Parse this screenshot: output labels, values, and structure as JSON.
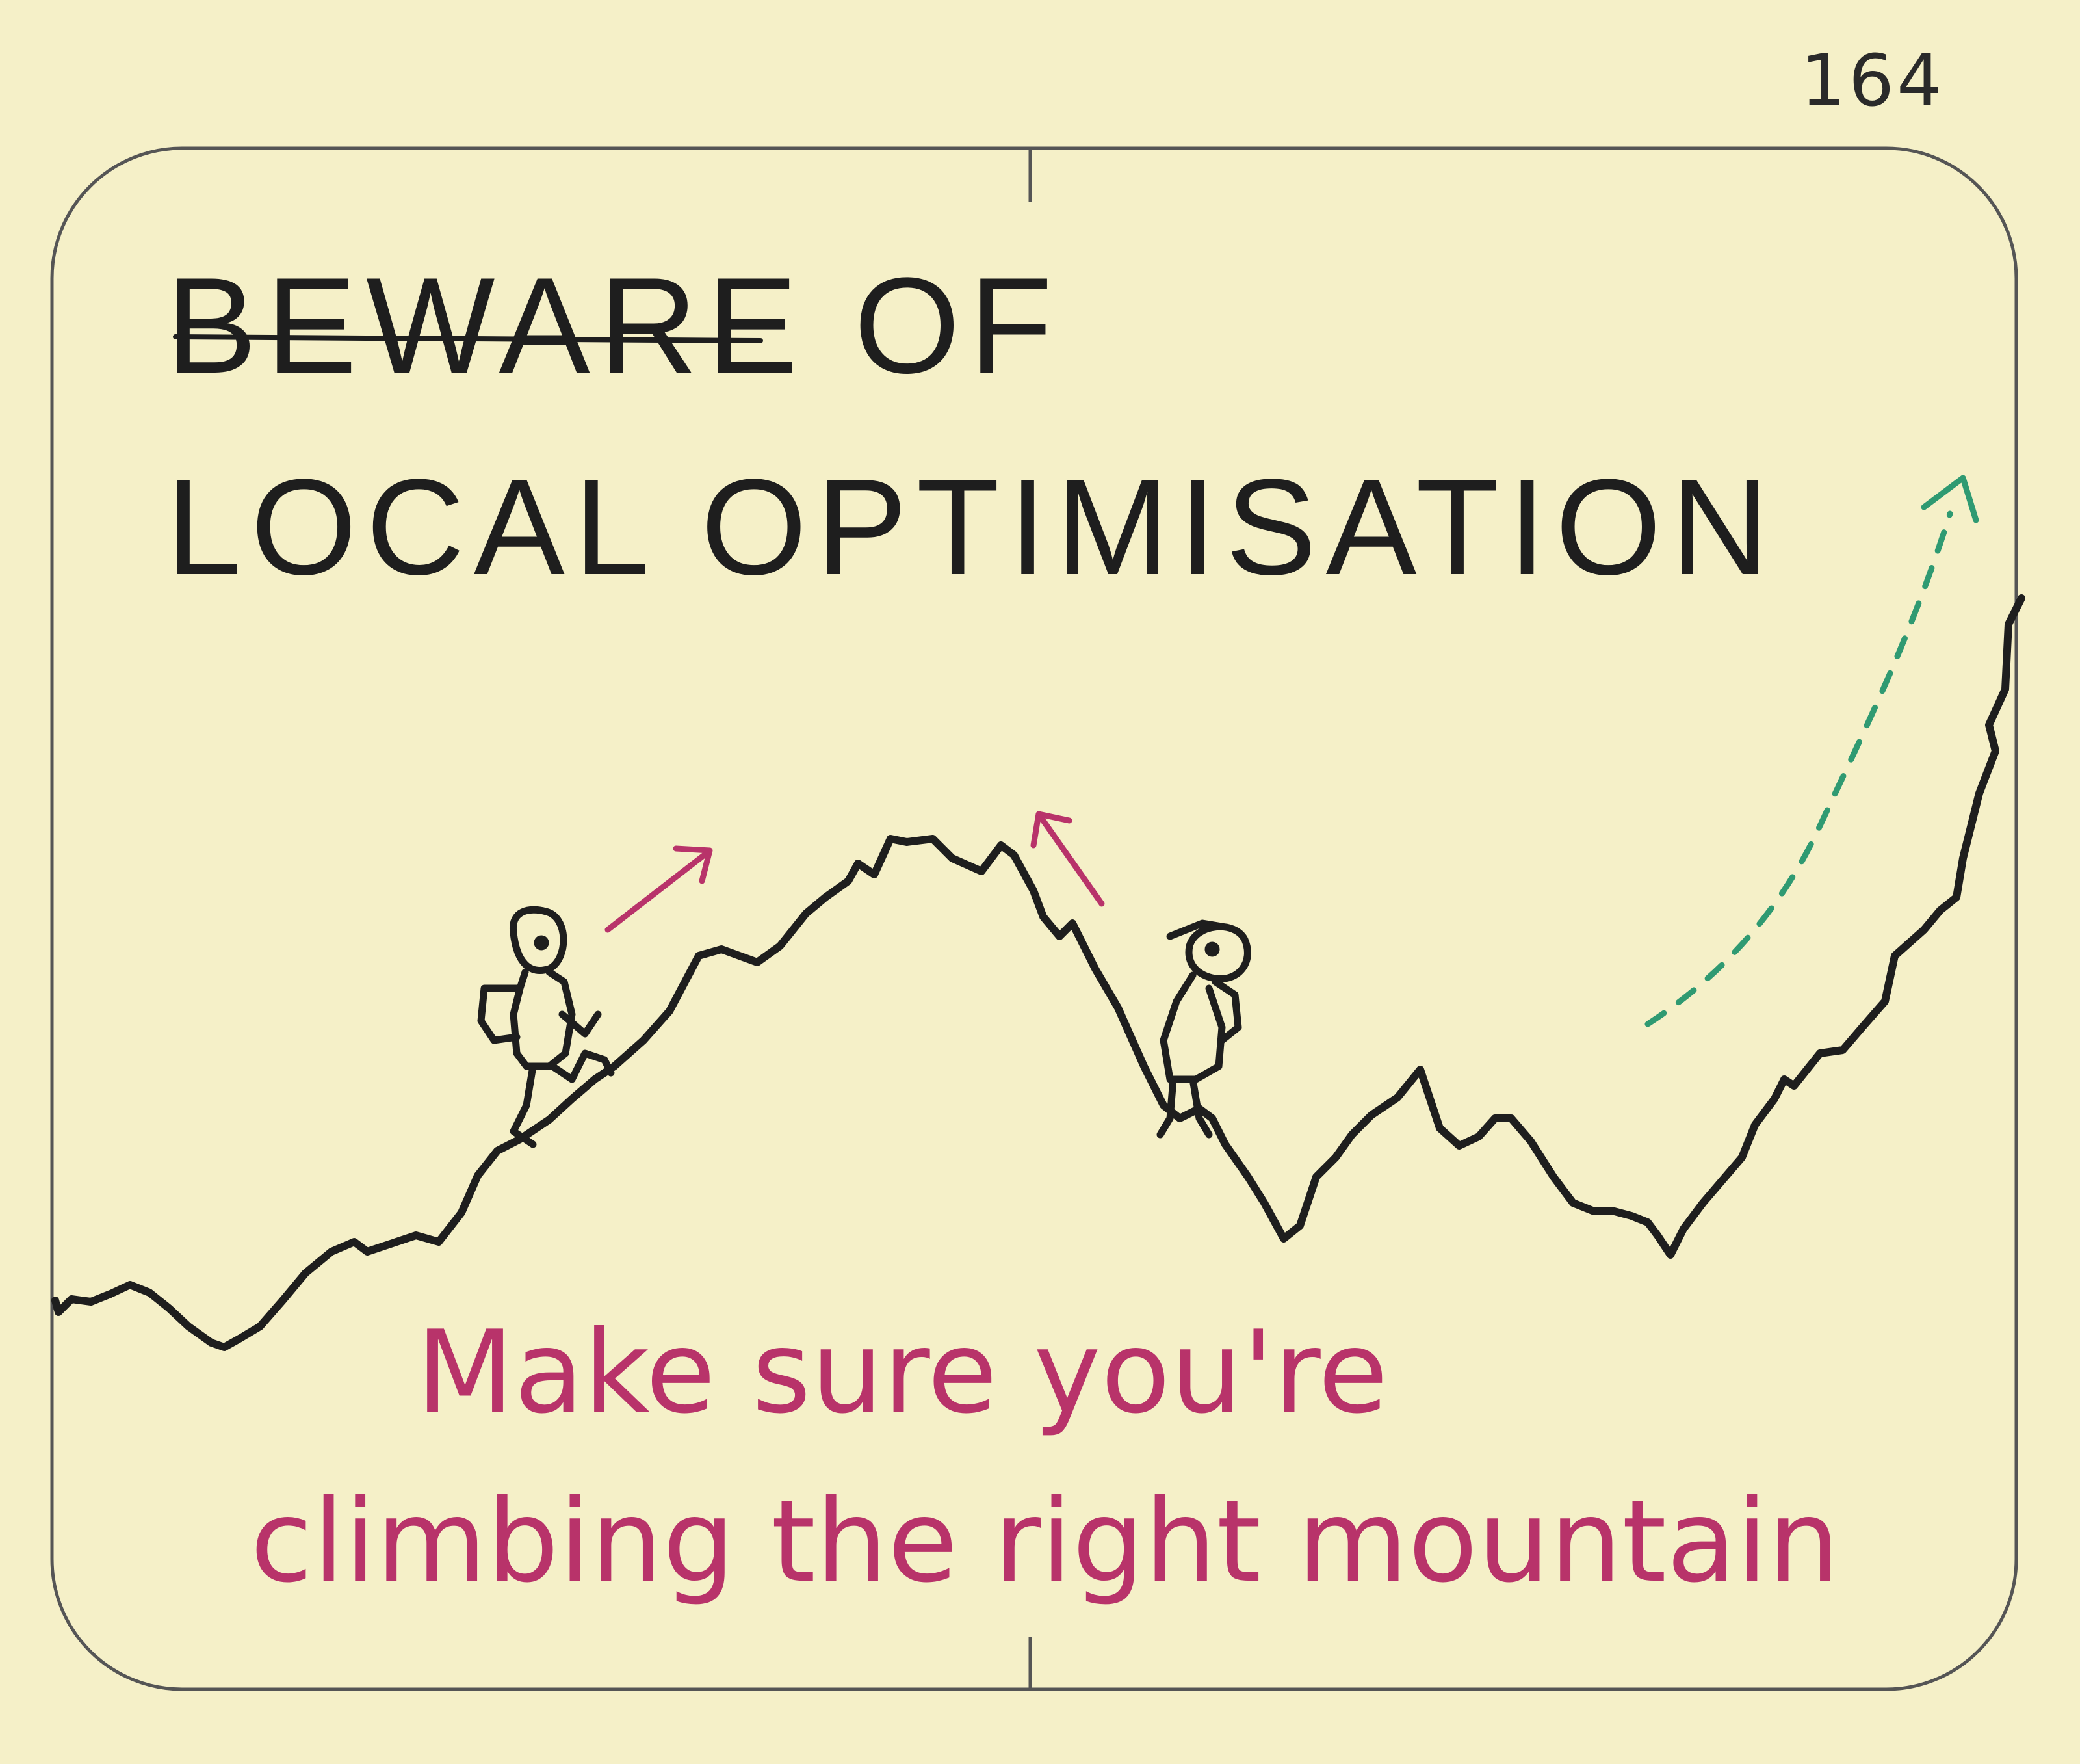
{
  "page_number": "164",
  "title": {
    "line1": "BEWARE OF",
    "line2": "LOCAL OPTIMISATION"
  },
  "caption": {
    "line1": "Make sure you're",
    "line2": "climbing the right mountain"
  },
  "colors": {
    "paper": "#f5f0c8",
    "ink": "#1e1e1e",
    "magenta": "#b8336a",
    "green": "#2f9a72"
  }
}
